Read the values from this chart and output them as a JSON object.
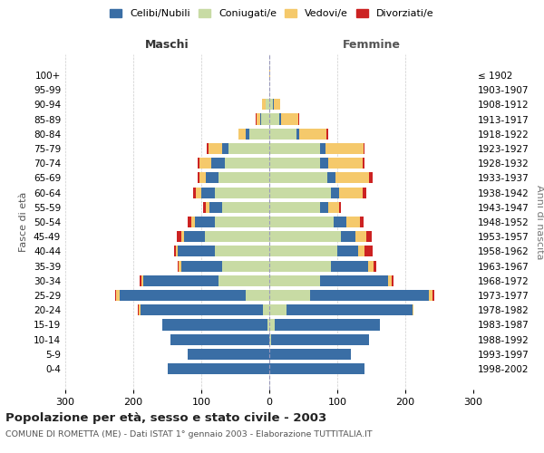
{
  "age_groups": [
    "0-4",
    "5-9",
    "10-14",
    "15-19",
    "20-24",
    "25-29",
    "30-34",
    "35-39",
    "40-44",
    "45-49",
    "50-54",
    "55-59",
    "60-64",
    "65-69",
    "70-74",
    "75-79",
    "80-84",
    "85-89",
    "90-94",
    "95-99",
    "100+"
  ],
  "birth_years": [
    "1998-2002",
    "1993-1997",
    "1988-1992",
    "1983-1987",
    "1978-1982",
    "1973-1977",
    "1968-1972",
    "1963-1967",
    "1958-1962",
    "1953-1957",
    "1948-1952",
    "1943-1947",
    "1938-1942",
    "1933-1937",
    "1928-1932",
    "1923-1927",
    "1918-1922",
    "1913-1917",
    "1908-1912",
    "1903-1907",
    "≤ 1902"
  ],
  "colors": {
    "celibe": "#3a6ea5",
    "coniugato": "#c8dba4",
    "vedovo": "#f5c96b",
    "divorziato": "#cc2222"
  },
  "maschi": {
    "celibe": [
      150,
      120,
      145,
      155,
      180,
      185,
      110,
      60,
      55,
      30,
      30,
      18,
      20,
      18,
      20,
      10,
      5,
      2,
      1,
      0,
      0
    ],
    "coniugato": [
      0,
      0,
      0,
      3,
      10,
      35,
      75,
      70,
      80,
      95,
      80,
      70,
      80,
      75,
      65,
      60,
      30,
      12,
      5,
      0,
      0
    ],
    "vedovo": [
      0,
      0,
      0,
      0,
      2,
      5,
      3,
      3,
      3,
      5,
      5,
      5,
      8,
      10,
      18,
      20,
      10,
      5,
      5,
      0,
      0
    ],
    "divorziato": [
      0,
      0,
      0,
      0,
      1,
      2,
      3,
      2,
      2,
      6,
      5,
      4,
      4,
      3,
      3,
      2,
      1,
      1,
      0,
      0,
      0
    ]
  },
  "femmine": {
    "nubile": [
      140,
      120,
      145,
      155,
      185,
      175,
      100,
      55,
      30,
      22,
      18,
      12,
      12,
      12,
      12,
      8,
      4,
      2,
      1,
      0,
      0
    ],
    "coniugata": [
      0,
      0,
      2,
      8,
      25,
      60,
      75,
      90,
      100,
      105,
      95,
      75,
      90,
      85,
      75,
      75,
      40,
      15,
      5,
      0,
      0
    ],
    "vedova": [
      0,
      0,
      0,
      0,
      2,
      5,
      5,
      8,
      10,
      15,
      20,
      15,
      35,
      50,
      50,
      55,
      40,
      25,
      10,
      0,
      1
    ],
    "divorziata": [
      0,
      0,
      0,
      0,
      0,
      2,
      2,
      4,
      12,
      8,
      6,
      3,
      5,
      5,
      3,
      2,
      3,
      2,
      0,
      0,
      0
    ]
  },
  "title": "Popolazione per età, sesso e stato civile - 2003",
  "subtitle": "COMUNE DI ROMETTA (ME) - Dati ISTAT 1° gennaio 2003 - Elaborazione TUTTITALIA.IT",
  "xlabel_left": "Maschi",
  "xlabel_right": "Femmine",
  "ylabel_left": "Fasce di età",
  "ylabel_right": "Anni di nascita",
  "xlim": 300,
  "legend_labels": [
    "Celibi/Nubili",
    "Coniugati/e",
    "Vedovi/e",
    "Divorziati/e"
  ],
  "bg_color": "#ffffff",
  "grid_color": "#cccccc",
  "bar_height": 0.75
}
